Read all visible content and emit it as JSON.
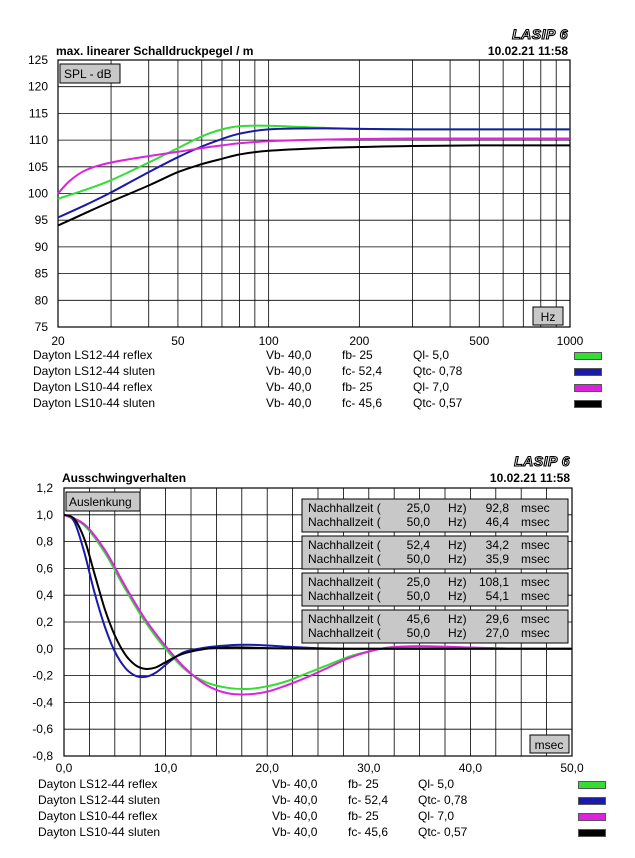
{
  "logo": "LASIP 6",
  "colors": {
    "green": "#33dd33",
    "blue": "#1a1aaa",
    "magenta": "#dd22dd",
    "black": "#000000",
    "grid": "#000000",
    "panel": "#c8c8c8"
  },
  "top": {
    "title": "max. linearer Schalldruckpegel  / m",
    "datetime": "10.02.21  11:58",
    "badge": "SPL - dB",
    "unit_badge": "Hz",
    "y_ticks": [
      "125",
      "120",
      "115",
      "110",
      "105",
      "100",
      "95",
      "90",
      "85",
      "80",
      "75"
    ],
    "x_ticks": [
      "20",
      "50",
      "100",
      "200",
      "500",
      "1000"
    ]
  },
  "bottom": {
    "title": "Ausschwingverhalten",
    "datetime": "10.02.21  11:58",
    "badge": "Auslenkung",
    "unit_badge": "msec",
    "y_ticks": [
      "1,2",
      "1,0",
      "0,8",
      "0,6",
      "0,4",
      "0,2",
      "0,0",
      "-0,2",
      "-0,4",
      "-0,6",
      "-0,8"
    ],
    "x_ticks": [
      "0,0",
      "10,0",
      "20,0",
      "30,0",
      "40,0",
      "50,0"
    ],
    "decay_boxes": [
      [
        {
          "label": "Nachhallzeit (",
          "hz": "25,0",
          "unit": "Hz)",
          "val": "92,8",
          "u2": "msec"
        },
        {
          "label": "Nachhallzeit (",
          "hz": "50,0",
          "unit": "Hz)",
          "val": "46,4",
          "u2": "msec"
        }
      ],
      [
        {
          "label": "Nachhallzeit (",
          "hz": "52,4",
          "unit": "Hz)",
          "val": "34,2",
          "u2": "msec"
        },
        {
          "label": "Nachhallzeit (",
          "hz": "50,0",
          "unit": "Hz)",
          "val": "35,9",
          "u2": "msec"
        }
      ],
      [
        {
          "label": "Nachhallzeit (",
          "hz": "25,0",
          "unit": "Hz)",
          "val": "108,1",
          "u2": "msec"
        },
        {
          "label": "Nachhallzeit (",
          "hz": "50,0",
          "unit": "Hz)",
          "val": "54,1",
          "u2": "msec"
        }
      ],
      [
        {
          "label": "Nachhallzeit (",
          "hz": "45,6",
          "unit": "Hz)",
          "val": "29,6",
          "u2": "msec"
        },
        {
          "label": "Nachhallzeit (",
          "hz": "50,0",
          "unit": "Hz)",
          "val": "27,0",
          "u2": "msec"
        }
      ]
    ]
  },
  "legend": [
    {
      "name": "Dayton LS12-44 reflex",
      "vb": "Vb- 40,0",
      "f": "fb- 25",
      "q": "Ql- 5,0",
      "color": "green"
    },
    {
      "name": "Dayton LS12-44 sluten",
      "vb": "Vb- 40,0",
      "f": "fc- 52,4",
      "q": "Qtc- 0,78",
      "color": "blue"
    },
    {
      "name": "Dayton LS10-44 reflex",
      "vb": "Vb- 40,0",
      "f": "fb- 25",
      "q": "Ql- 7,0",
      "color": "magenta"
    },
    {
      "name": "Dayton LS10-44 sluten",
      "vb": "Vb- 40,0",
      "f": "fc- 45,6",
      "q": "Qtc- 0,57",
      "color": "black"
    }
  ],
  "chart_data": [
    {
      "type": "line",
      "title": "max. linearer Schalldruckpegel  / m",
      "xscale": "log",
      "xlim": [
        20,
        1000
      ],
      "ylim": [
        75,
        125
      ],
      "xlabel": "Hz",
      "ylabel": "SPL - dB",
      "grid": true,
      "series": [
        {
          "name": "Dayton LS12-44 reflex",
          "color": "green",
          "x": [
            20,
            25,
            30,
            40,
            50,
            60,
            70,
            80,
            100,
            150,
            200,
            300,
            500,
            1000
          ],
          "y": [
            99,
            100.8,
            102.5,
            105.8,
            108.5,
            110.7,
            112,
            112.6,
            112.7,
            112.3,
            112.1,
            112,
            112,
            112
          ]
        },
        {
          "name": "Dayton LS12-44 sluten",
          "color": "blue",
          "x": [
            20,
            25,
            30,
            40,
            50,
            60,
            70,
            80,
            100,
            150,
            200,
            300,
            500,
            1000
          ],
          "y": [
            95.5,
            98,
            100.2,
            104,
            106.8,
            108.8,
            110.2,
            111.2,
            112,
            112.2,
            112.1,
            112,
            112,
            112
          ]
        },
        {
          "name": "Dayton LS10-44 reflex",
          "color": "magenta",
          "x": [
            20,
            22,
            25,
            30,
            40,
            50,
            60,
            70,
            80,
            100,
            150,
            200,
            300,
            500,
            1000
          ],
          "y": [
            100,
            102.5,
            104.5,
            105.8,
            107,
            107.8,
            108.5,
            109,
            109.4,
            109.8,
            110.1,
            110.2,
            110.3,
            110.3,
            110.3
          ]
        },
        {
          "name": "Dayton LS10-44 sluten",
          "color": "black",
          "x": [
            20,
            25,
            30,
            40,
            50,
            60,
            70,
            80,
            100,
            150,
            200,
            300,
            500,
            1000
          ],
          "y": [
            94,
            96.5,
            98.5,
            101.5,
            104,
            105.5,
            106.5,
            107.3,
            108,
            108.5,
            108.7,
            108.9,
            109,
            109
          ]
        }
      ]
    },
    {
      "type": "line",
      "title": "Ausschwingverhalten",
      "xlim": [
        0,
        50
      ],
      "ylim": [
        -0.8,
        1.2
      ],
      "xlabel": "msec",
      "ylabel": "Auslenkung",
      "grid": true,
      "series": [
        {
          "name": "Dayton LS12-44 reflex",
          "color": "green",
          "x": [
            0,
            2,
            4,
            6,
            8,
            10,
            12,
            14,
            16,
            18,
            20,
            22,
            24,
            26,
            28,
            30,
            32,
            35,
            40,
            45,
            50
          ],
          "y": [
            1,
            0.92,
            0.72,
            0.45,
            0.2,
            0,
            -0.16,
            -0.25,
            -0.29,
            -0.3,
            -0.28,
            -0.24,
            -0.18,
            -0.12,
            -0.06,
            -0.02,
            0.01,
            0.015,
            0.005,
            0,
            0
          ]
        },
        {
          "name": "Dayton LS12-44 sluten",
          "color": "blue",
          "x": [
            0,
            1,
            2,
            3,
            4,
            5,
            6,
            7,
            8,
            9,
            10,
            11,
            12,
            14,
            16,
            18,
            20,
            22,
            24,
            26,
            30,
            40,
            50
          ],
          "y": [
            1,
            0.95,
            0.72,
            0.42,
            0.17,
            -0.02,
            -0.14,
            -0.2,
            -0.21,
            -0.18,
            -0.12,
            -0.06,
            -0.02,
            0.01,
            0.025,
            0.03,
            0.025,
            0.015,
            0.008,
            0.003,
            0,
            0,
            0
          ]
        },
        {
          "name": "Dayton LS10-44 reflex",
          "color": "magenta",
          "x": [
            0,
            2,
            4,
            6,
            8,
            10,
            12,
            14,
            16,
            18,
            20,
            22,
            24,
            26,
            28,
            30,
            32,
            35,
            40,
            45,
            50
          ],
          "y": [
            1,
            0.93,
            0.74,
            0.47,
            0.22,
            0.02,
            -0.15,
            -0.27,
            -0.33,
            -0.34,
            -0.32,
            -0.27,
            -0.21,
            -0.14,
            -0.07,
            -0.02,
            0.01,
            0.02,
            0.01,
            0,
            0
          ]
        },
        {
          "name": "Dayton LS10-44 sluten",
          "color": "black",
          "x": [
            0,
            1,
            2,
            3,
            4,
            5,
            6,
            7,
            8,
            9,
            10,
            11,
            12,
            14,
            16,
            18,
            20,
            25,
            30,
            40,
            50
          ],
          "y": [
            1,
            0.97,
            0.82,
            0.56,
            0.3,
            0.1,
            -0.04,
            -0.12,
            -0.15,
            -0.14,
            -0.1,
            -0.06,
            -0.03,
            0,
            0.01,
            0.01,
            0.005,
            0,
            0,
            0,
            0
          ]
        }
      ]
    }
  ]
}
